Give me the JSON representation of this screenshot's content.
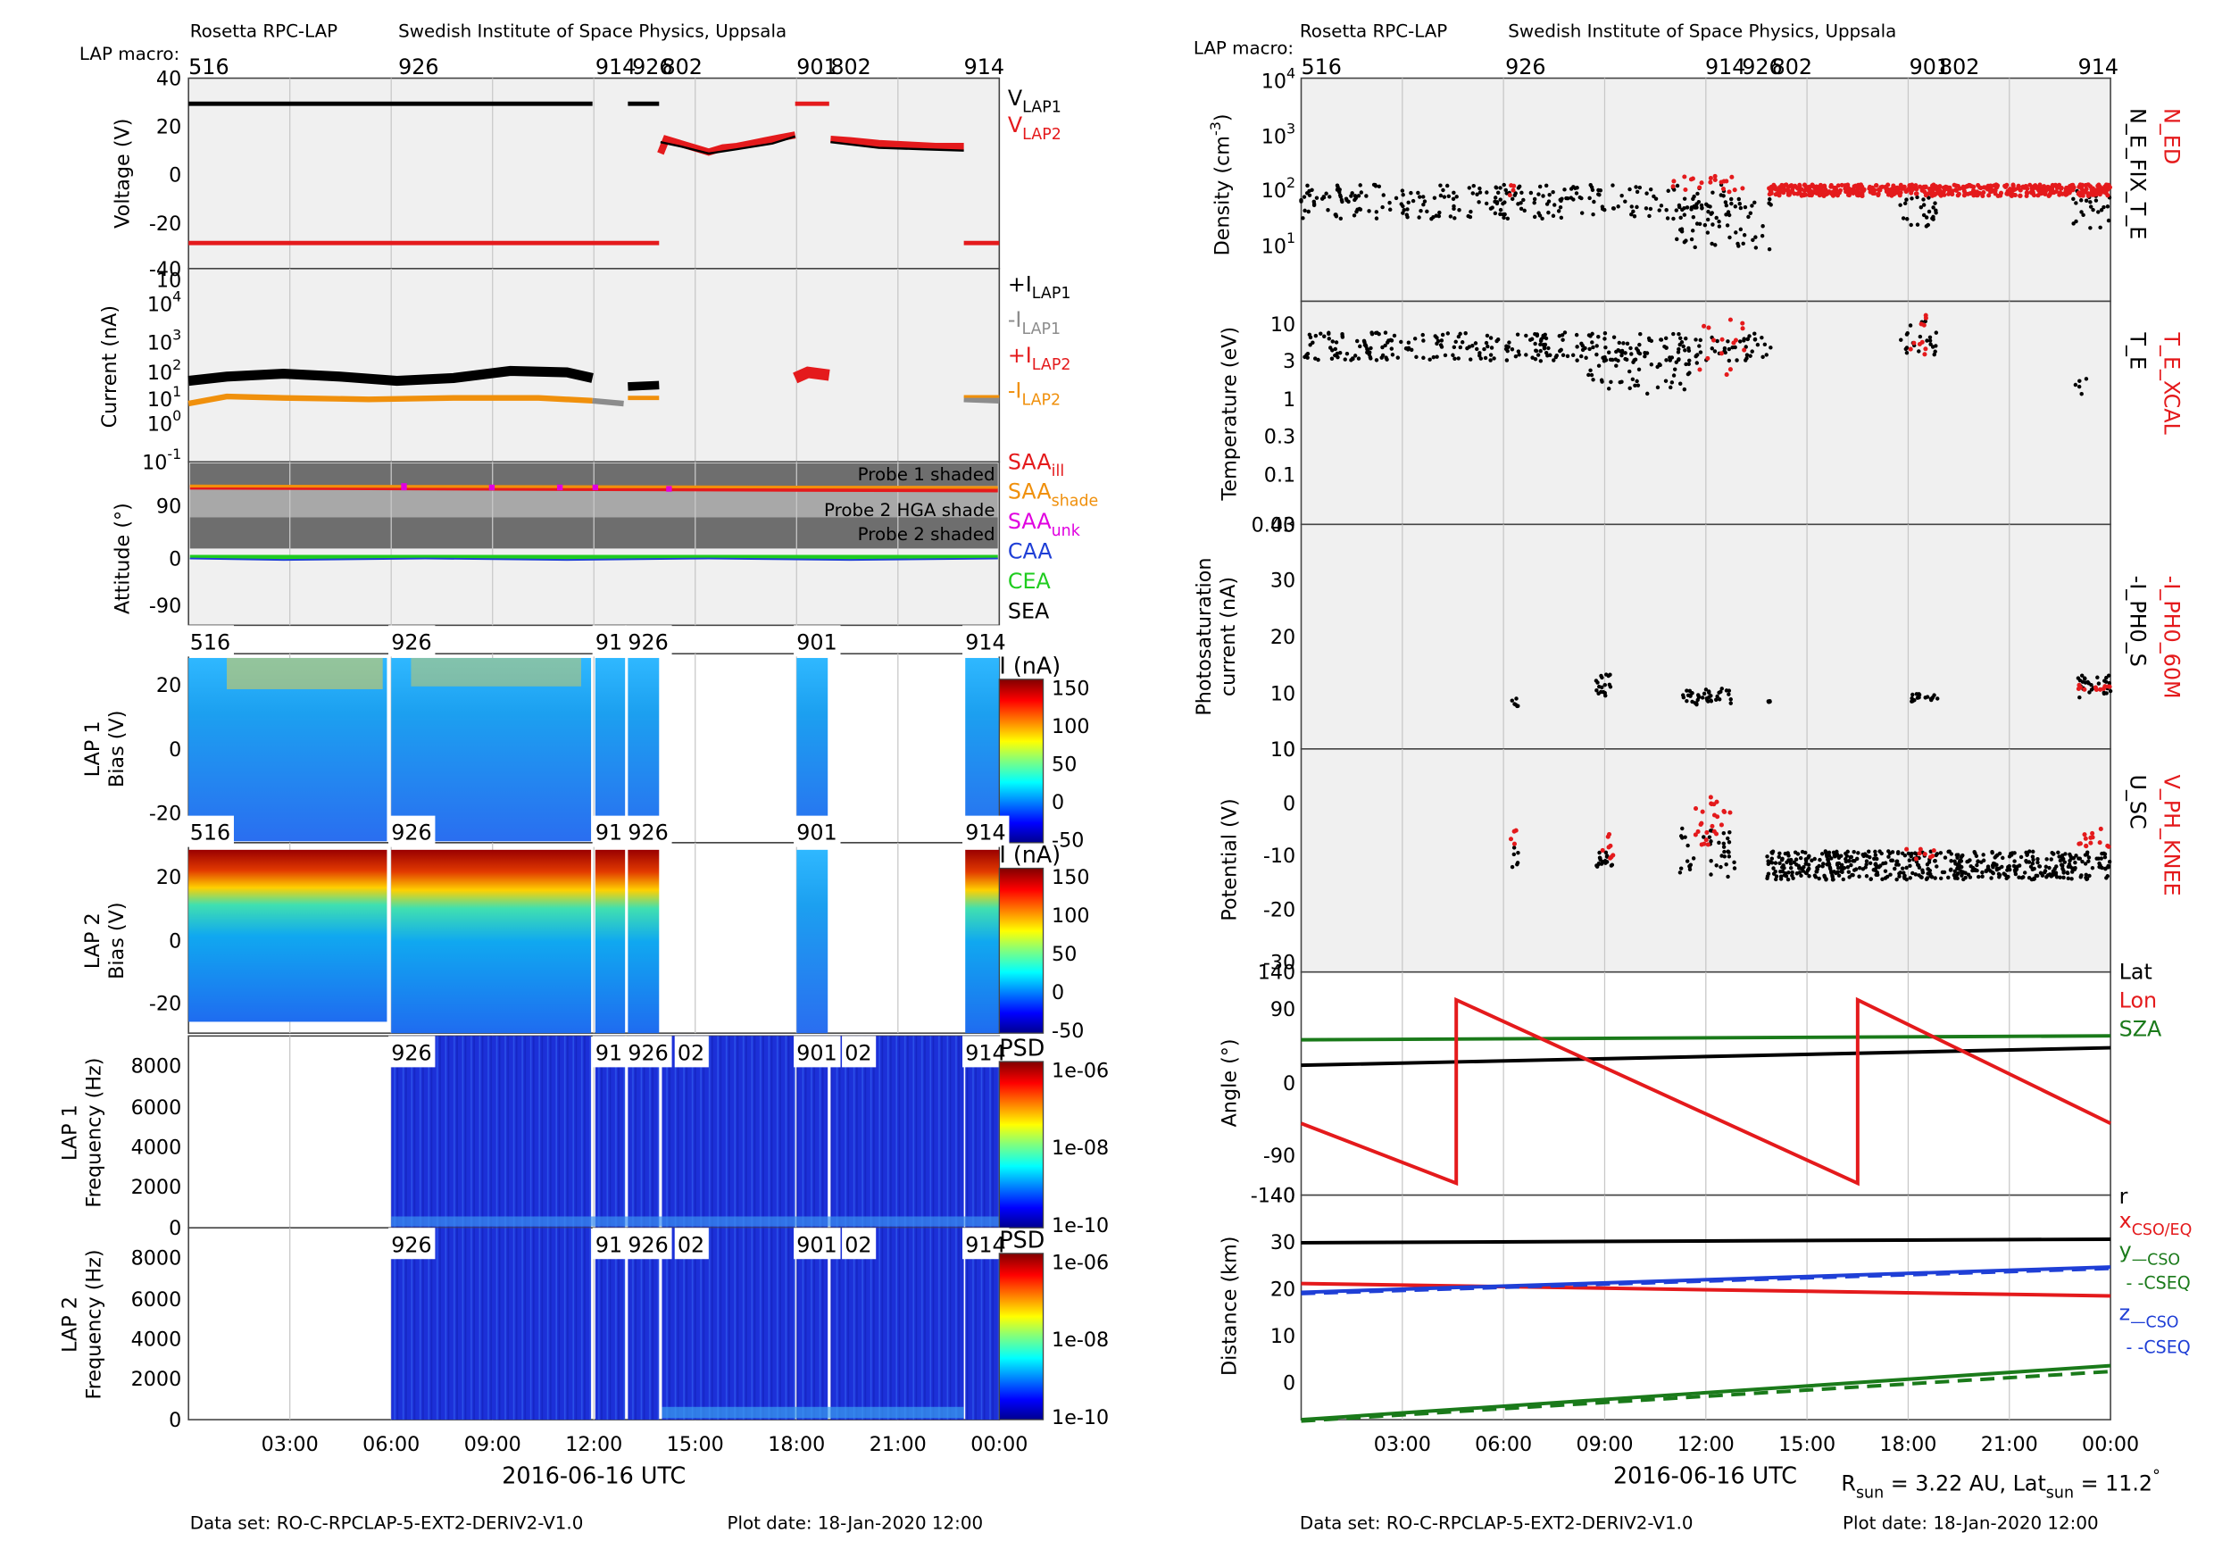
{
  "header": {
    "instrument": "Rosetta RPC-LAP",
    "institute": "Swedish Institute of Space Physics, Uppsala",
    "macro_label": "LAP macro:"
  },
  "footer": {
    "dataset": "Data set: RO-C-RPCLAP-5-EXT2-DERIV2-V1.0",
    "plot_date": "Plot date: 18-Jan-2020 12:00",
    "rsun": "R",
    "rsun_sub": "sun",
    "rsun_val": " = 3.22 AU, Lat",
    "lat_sub": "sun",
    "lat_val": " = 11.2",
    "lat_deg": "°"
  },
  "colors": {
    "panel_bg": "#f0f0f0",
    "black": "#000000",
    "red": "#e41a1c",
    "orange": "#f0900c",
    "gray": "#8c8c8c",
    "magenta": "#e000e0",
    "blue": "#1f3fd6",
    "green": "#1fcc1f",
    "dkgreen": "#1a7a1a"
  },
  "chart_data": [
    {
      "id": "left-time-axis",
      "type": "line",
      "xlabel": "2016-06-16 UTC",
      "x_ticks": [
        "03:00",
        "06:00",
        "09:00",
        "12:00",
        "15:00",
        "18:00",
        "21:00",
        "00:00"
      ],
      "macros": [
        "516",
        "926",
        "914",
        "926",
        "802",
        "901",
        "802",
        "914"
      ]
    },
    {
      "id": "voltage",
      "type": "line",
      "ylabel": "Voltage (V)",
      "ylim": [
        -40,
        40
      ],
      "y_ticks": [
        "40",
        "20",
        "0",
        "-20",
        "-40"
      ],
      "legend": [
        {
          "name": "V",
          "sub": "LAP1",
          "color": "black"
        },
        {
          "name": "V",
          "sub": "LAP2",
          "color": "red"
        }
      ]
    },
    {
      "id": "current",
      "type": "scatter",
      "ylabel": "Current (nA)",
      "scale": "log",
      "y_ticks": [
        "10",
        "10",
        "10",
        "10",
        "10",
        "10",
        "10"
      ],
      "y_exp": [
        "",
        "4",
        "3",
        "2",
        "1",
        "0",
        "-1"
      ],
      "legend": [
        {
          "name": "+I",
          "sub": "LAP1",
          "color": "black"
        },
        {
          "name": "-I",
          "sub": "LAP1",
          "color": "gray"
        },
        {
          "name": "+I",
          "sub": "LAP2",
          "color": "red"
        },
        {
          "name": "-I",
          "sub": "LAP2",
          "color": "orange"
        }
      ]
    },
    {
      "id": "attitude",
      "type": "line",
      "ylabel": "Attitude (°)",
      "ylim": [
        -90,
        180
      ],
      "y_ticks": [
        "90",
        "0",
        "-90"
      ],
      "bands": [
        "Probe 1 shaded",
        "Probe 2 HGA shade",
        "Probe 2 shaded"
      ],
      "legend": [
        {
          "name": "SAA",
          "sub": "ill",
          "color": "red"
        },
        {
          "name": "SAA",
          "sub": "shade",
          "color": "orange"
        },
        {
          "name": "SAA",
          "sub": "unk",
          "color": "magenta"
        },
        {
          "name": "CAA",
          "sub": "",
          "color": "blue"
        },
        {
          "name": "CEA",
          "sub": "",
          "color": "green"
        },
        {
          "name": "SEA",
          "sub": "",
          "color": "black"
        }
      ]
    },
    {
      "id": "lap1-bias",
      "type": "heatmap",
      "ylabel": "LAP 1\nBias (V)",
      "y_ticks": [
        "20",
        "0",
        "-20"
      ],
      "colorbar_label": "I (nA)",
      "colorbar_ticks": [
        "150",
        "100",
        "50",
        "0",
        "-50"
      ],
      "labels": [
        "516",
        "926",
        "91",
        "926",
        "901",
        "914"
      ]
    },
    {
      "id": "lap2-bias",
      "type": "heatmap",
      "ylabel": "LAP 2\nBias (V)",
      "y_ticks": [
        "20",
        "0",
        "-20"
      ],
      "colorbar_label": "I (nA)",
      "colorbar_ticks": [
        "150",
        "100",
        "50",
        "0",
        "-50"
      ],
      "labels": [
        "516",
        "926",
        "91",
        "926",
        "901",
        "914"
      ]
    },
    {
      "id": "lap1-freq",
      "type": "heatmap",
      "ylabel": "LAP 1\nFrequency (Hz)",
      "y_ticks": [
        "8000",
        "6000",
        "4000",
        "2000",
        "0"
      ],
      "colorbar_label": "PSD",
      "colorbar_ticks": [
        "1e-06",
        "1e-08",
        "1e-10"
      ],
      "labels": [
        "926",
        "91",
        "926",
        "02",
        "901",
        "02",
        "914"
      ]
    },
    {
      "id": "lap2-freq",
      "type": "heatmap",
      "ylabel": "LAP 2\nFrequency (Hz)",
      "y_ticks": [
        "8000",
        "6000",
        "4000",
        "2000",
        "0"
      ],
      "colorbar_label": "PSD",
      "colorbar_ticks": [
        "1e-06",
        "1e-08",
        "1e-10"
      ],
      "labels": [
        "926",
        "91",
        "926",
        "02",
        "901",
        "02",
        "914"
      ]
    },
    {
      "id": "density",
      "type": "scatter",
      "ylabel": "Density (cm",
      "ylabel_exp": "-3",
      "ylabel_end": ")",
      "scale": "log",
      "y_ticks": [
        "10",
        "10",
        "10",
        "10"
      ],
      "y_exp": [
        "4",
        "3",
        "2",
        "1"
      ],
      "legend": [
        {
          "name": "N_ED",
          "color": "red"
        },
        {
          "name": "N_E_FIX_T_E",
          "color": "black"
        }
      ]
    },
    {
      "id": "temperature",
      "type": "scatter",
      "ylabel": "Temperature (eV)",
      "scale": "log",
      "y_ticks": [
        "10",
        "3",
        "1",
        "0.3",
        "0.1",
        "0.03"
      ],
      "legend": [
        {
          "name": "T_E_XCAL",
          "color": "red"
        },
        {
          "name": "T_E",
          "color": "black"
        }
      ]
    },
    {
      "id": "photosat",
      "type": "scatter",
      "ylabel": "Photosaturation\ncurrent (nA)",
      "ylim": [
        0,
        40
      ],
      "y_ticks": [
        "40",
        "30",
        "20",
        "10",
        "0"
      ],
      "legend": [
        {
          "name": "-I_PH0_60M",
          "color": "red"
        },
        {
          "name": "-I_PH0_S",
          "color": "black"
        }
      ]
    },
    {
      "id": "potential",
      "type": "scatter",
      "ylabel": "Potential (V)",
      "ylim": [
        -30,
        10
      ],
      "y_ticks": [
        "10",
        "0",
        "-10",
        "-20",
        "-30"
      ],
      "legend": [
        {
          "name": "V_PH_KNEE",
          "color": "red"
        },
        {
          "name": "U_SC",
          "color": "black"
        }
      ]
    },
    {
      "id": "angle",
      "type": "line",
      "ylabel": "Angle (°)",
      "ylim": [
        -140,
        140
      ],
      "y_ticks": [
        "140",
        "90",
        "0",
        "-90",
        "-140"
      ],
      "legend": [
        {
          "name": "Lat",
          "color": "black"
        },
        {
          "name": "Lon",
          "color": "red"
        },
        {
          "name": "SZA",
          "color": "dkgreen"
        }
      ],
      "series": [
        {
          "name": "Lat",
          "x": [
            0,
            24
          ],
          "values": [
            23,
            45
          ]
        },
        {
          "name": "SZA",
          "x": [
            0,
            24
          ],
          "values": [
            55,
            60
          ]
        },
        {
          "name": "Lon",
          "x": [
            0,
            4.6,
            4.6,
            16.5,
            16.5,
            24
          ],
          "values": [
            -50,
            -125,
            105,
            -125,
            105,
            -50
          ]
        }
      ]
    },
    {
      "id": "distance",
      "type": "line",
      "ylabel": "Distance (km)",
      "ylim": [
        -9,
        40
      ],
      "y_ticks": [
        "40",
        "30",
        "20",
        "10",
        "0"
      ],
      "legend": [
        {
          "name": "r",
          "color": "black"
        },
        {
          "name": "x",
          "sub": "CSO/EQ",
          "color": "red"
        },
        {
          "name": "y",
          "sub": "—CSO",
          "color": "dkgreen"
        },
        {
          "name": "- -CSEQ",
          "color": "dkgreen"
        },
        {
          "name": "z",
          "sub": "—CSO",
          "color": "blue"
        },
        {
          "name": "- -CSEQ",
          "color": "blue"
        }
      ],
      "series": [
        {
          "name": "r",
          "x": [
            0,
            24
          ],
          "values": [
            29.6,
            30.4
          ]
        },
        {
          "name": "x",
          "x": [
            0,
            24
          ],
          "values": [
            20.7,
            18
          ]
        },
        {
          "name": "y CSO",
          "x": [
            0,
            24
          ],
          "values": [
            -9,
            2.8
          ]
        },
        {
          "name": "y CSEQ",
          "x": [
            0,
            24
          ],
          "values": [
            -9.3,
            1.5
          ]
        },
        {
          "name": "z CSO",
          "x": [
            0,
            24
          ],
          "values": [
            18.8,
            24.3
          ]
        },
        {
          "name": "z CSEQ",
          "x": [
            0,
            24
          ],
          "values": [
            18.5,
            24.0
          ]
        }
      ]
    }
  ]
}
